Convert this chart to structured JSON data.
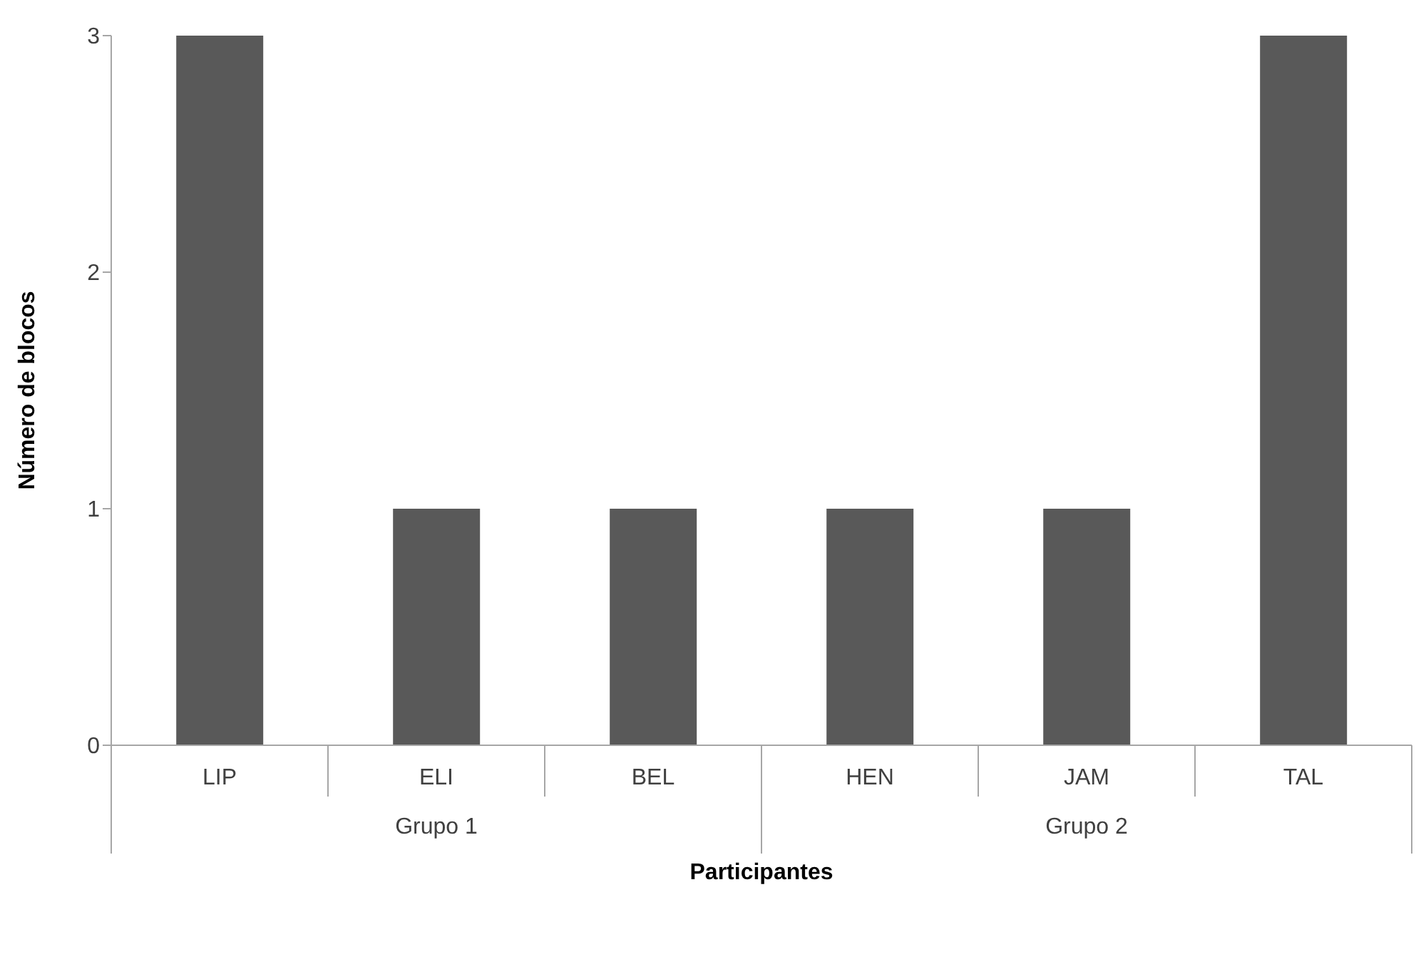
{
  "chart_data": {
    "type": "bar",
    "xlabel": "Participantes",
    "ylabel": "Número de blocos",
    "categories": [
      "LIP",
      "ELI",
      "BEL",
      "HEN",
      "JAM",
      "TAL"
    ],
    "values": [
      3,
      1,
      1,
      1,
      1,
      3
    ],
    "color": "#595959",
    "ylim": [
      0,
      3
    ],
    "yticks": [
      0,
      1,
      2,
      3
    ],
    "annotations": [
      "Grupo 1",
      "Grupo 2"
    ]
  }
}
